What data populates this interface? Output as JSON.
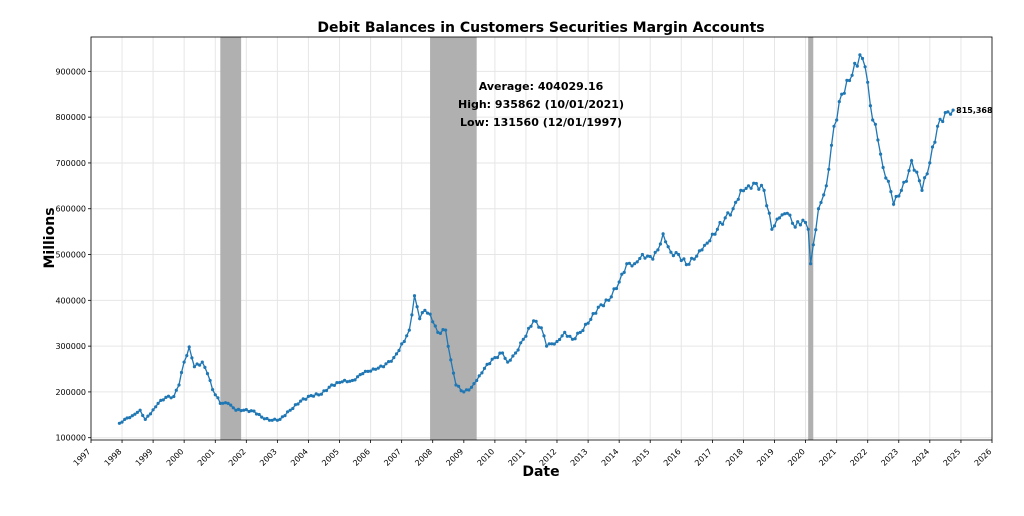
{
  "colors": {
    "series": "#1f77b4",
    "recession": "#b0b0b0",
    "grid": "#e6e6e6",
    "axis": "#000000"
  },
  "chart_data": {
    "type": "line",
    "title": "Debit Balances in Customers Securities Margin Accounts",
    "xlabel": "Date",
    "ylabel": "Millions",
    "grid": true,
    "xlim": [
      "1997-01-01",
      "2026-01-01"
    ],
    "ylim": [
      95000,
      975000
    ],
    "x_ticks": [
      "1997",
      "1998",
      "1999",
      "2000",
      "2001",
      "2002",
      "2003",
      "2004",
      "2005",
      "2006",
      "2007",
      "2008",
      "2009",
      "2010",
      "2011",
      "2012",
      "2013",
      "2014",
      "2015",
      "2016",
      "2017",
      "2018",
      "2019",
      "2020",
      "2021",
      "2022",
      "2023",
      "2024",
      "2025",
      "2026"
    ],
    "y_ticks": [
      {
        "value": 100000,
        "label": "100000"
      },
      {
        "value": 200000,
        "label": "200000"
      },
      {
        "value": 300000,
        "label": "300000"
      },
      {
        "value": 400000,
        "label": "400000"
      },
      {
        "value": 500000,
        "label": "500000"
      },
      {
        "value": 600000,
        "label": "600000"
      },
      {
        "value": 700000,
        "label": "700000"
      },
      {
        "value": 800000,
        "label": "800000"
      },
      {
        "value": 900000,
        "label": "900000"
      }
    ],
    "recessions": [
      {
        "start": "2001-03-01",
        "end": "2001-11-01"
      },
      {
        "start": "2007-12-01",
        "end": "2009-06-01"
      },
      {
        "start": "2020-02-01",
        "end": "2020-04-01"
      }
    ],
    "stats": {
      "average": "Average: 404029.16",
      "high": "High: 935862 (10/01/2021)",
      "low": "Low: 131560 (12/01/1997)"
    },
    "last_value_label": "815,368",
    "anchors": [
      [
        "1997-12-01",
        131560
      ],
      [
        "1998-02-01",
        140000
      ],
      [
        "1998-05-01",
        148000
      ],
      [
        "1998-08-01",
        160000
      ],
      [
        "1998-10-01",
        140000
      ],
      [
        "1998-12-01",
        152000
      ],
      [
        "1999-03-01",
        175000
      ],
      [
        "1999-06-01",
        188000
      ],
      [
        "1999-09-01",
        190000
      ],
      [
        "1999-11-01",
        215000
      ],
      [
        "2000-01-01",
        265000
      ],
      [
        "2000-03-01",
        298000
      ],
      [
        "2000-05-01",
        255000
      ],
      [
        "2000-08-01",
        265000
      ],
      [
        "2000-10-01",
        240000
      ],
      [
        "2000-12-01",
        205000
      ],
      [
        "2001-03-01",
        175000
      ],
      [
        "2001-06-01",
        175000
      ],
      [
        "2001-09-01",
        160000
      ],
      [
        "2001-12-01",
        160000
      ],
      [
        "2002-04-01",
        158000
      ],
      [
        "2002-07-01",
        145000
      ],
      [
        "2002-10-01",
        138000
      ],
      [
        "2003-02-01",
        140000
      ],
      [
        "2003-06-01",
        160000
      ],
      [
        "2003-10-01",
        180000
      ],
      [
        "2004-02-01",
        192000
      ],
      [
        "2004-06-01",
        195000
      ],
      [
        "2004-10-01",
        215000
      ],
      [
        "2005-02-01",
        222000
      ],
      [
        "2005-06-01",
        225000
      ],
      [
        "2005-10-01",
        240000
      ],
      [
        "2006-02-01",
        250000
      ],
      [
        "2006-06-01",
        255000
      ],
      [
        "2006-10-01",
        275000
      ],
      [
        "2007-02-01",
        310000
      ],
      [
        "2007-04-01",
        335000
      ],
      [
        "2007-06-01",
        410000
      ],
      [
        "2007-08-01",
        360000
      ],
      [
        "2007-10-01",
        378000
      ],
      [
        "2007-12-01",
        370000
      ],
      [
        "2008-03-01",
        330000
      ],
      [
        "2008-06-01",
        335000
      ],
      [
        "2008-08-01",
        270000
      ],
      [
        "2008-10-01",
        215000
      ],
      [
        "2009-01-01",
        200000
      ],
      [
        "2009-04-01",
        210000
      ],
      [
        "2009-07-01",
        235000
      ],
      [
        "2009-10-01",
        260000
      ],
      [
        "2010-01-01",
        275000
      ],
      [
        "2010-04-01",
        285000
      ],
      [
        "2010-06-01",
        265000
      ],
      [
        "2010-09-01",
        285000
      ],
      [
        "2010-12-01",
        315000
      ],
      [
        "2011-04-01",
        355000
      ],
      [
        "2011-07-01",
        340000
      ],
      [
        "2011-09-01",
        300000
      ],
      [
        "2012-01-01",
        310000
      ],
      [
        "2012-04-01",
        330000
      ],
      [
        "2012-07-01",
        315000
      ],
      [
        "2012-10-01",
        330000
      ],
      [
        "2013-01-01",
        350000
      ],
      [
        "2013-05-01",
        385000
      ],
      [
        "2013-09-01",
        400000
      ],
      [
        "2014-01-01",
        440000
      ],
      [
        "2014-04-01",
        480000
      ],
      [
        "2014-07-01",
        480000
      ],
      [
        "2014-10-01",
        500000
      ],
      [
        "2015-02-01",
        490000
      ],
      [
        "2015-04-01",
        510000
      ],
      [
        "2015-06-01",
        545000
      ],
      [
        "2015-09-01",
        505000
      ],
      [
        "2015-12-01",
        500000
      ],
      [
        "2016-03-01",
        478000
      ],
      [
        "2016-06-01",
        490000
      ],
      [
        "2016-09-01",
        510000
      ],
      [
        "2016-12-01",
        530000
      ],
      [
        "2017-03-01",
        555000
      ],
      [
        "2017-06-01",
        580000
      ],
      [
        "2017-09-01",
        600000
      ],
      [
        "2017-12-01",
        640000
      ],
      [
        "2018-03-01",
        650000
      ],
      [
        "2018-06-01",
        655000
      ],
      [
        "2018-09-01",
        640000
      ],
      [
        "2018-12-01",
        555000
      ],
      [
        "2019-03-01",
        580000
      ],
      [
        "2019-06-01",
        590000
      ],
      [
        "2019-09-01",
        560000
      ],
      [
        "2019-12-01",
        575000
      ],
      [
        "2020-02-01",
        555000
      ],
      [
        "2020-03-01",
        480000
      ],
      [
        "2020-06-01",
        600000
      ],
      [
        "2020-09-01",
        650000
      ],
      [
        "2020-12-01",
        780000
      ],
      [
        "2021-03-01",
        850000
      ],
      [
        "2021-06-01",
        880000
      ],
      [
        "2021-10-01",
        935862
      ],
      [
        "2021-12-01",
        910000
      ],
      [
        "2022-02-01",
        825000
      ],
      [
        "2022-05-01",
        750000
      ],
      [
        "2022-07-01",
        690000
      ],
      [
        "2022-09-01",
        660000
      ],
      [
        "2022-11-01",
        610000
      ],
      [
        "2023-02-01",
        640000
      ],
      [
        "2023-04-01",
        660000
      ],
      [
        "2023-06-01",
        705000
      ],
      [
        "2023-08-01",
        680000
      ],
      [
        "2023-10-01",
        640000
      ],
      [
        "2024-01-01",
        700000
      ],
      [
        "2024-04-01",
        780000
      ],
      [
        "2024-07-01",
        810000
      ],
      [
        "2024-10-01",
        815368
      ]
    ]
  }
}
